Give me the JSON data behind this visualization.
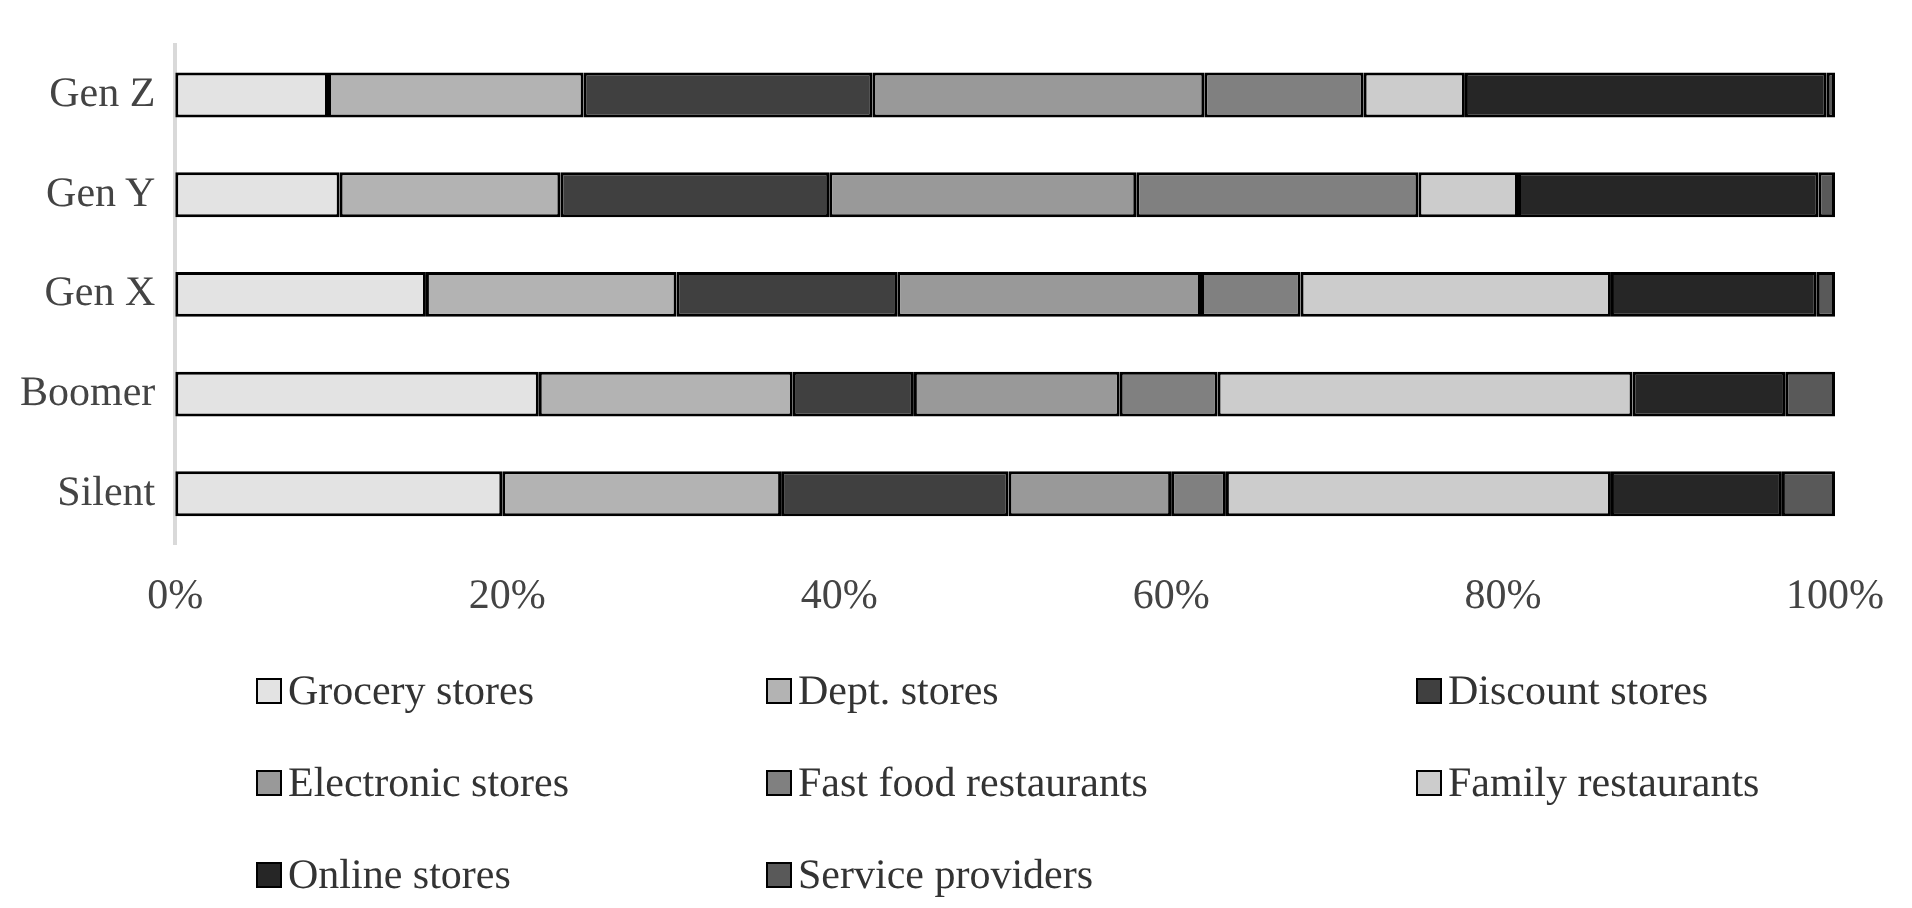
{
  "chart_data": {
    "type": "bar",
    "orientation": "horizontal",
    "stacked": true,
    "categories": [
      "Gen Z",
      "Gen Y",
      "Gen X",
      "Boomer",
      "Silent"
    ],
    "xlim": [
      0,
      100
    ],
    "xticks": [
      {
        "value": 0,
        "label": "0%"
      },
      {
        "value": 20,
        "label": "20%"
      },
      {
        "value": 40,
        "label": "40%"
      },
      {
        "value": 60,
        "label": "60%"
      },
      {
        "value": 80,
        "label": "80%"
      },
      {
        "value": 100,
        "label": "100%"
      }
    ],
    "grid": false,
    "legend": "bottom",
    "series": [
      {
        "name": "Grocery stores",
        "color": "#e3e3e3",
        "values": [
          9.2,
          9.9,
          15.1,
          21.9,
          19.7
        ]
      },
      {
        "name": "Dept. stores",
        "color": "#b3b3b3",
        "values": [
          15.4,
          13.3,
          15.1,
          15.3,
          16.8
        ]
      },
      {
        "name": "Discount stores",
        "color": "#404040",
        "values": [
          17.4,
          16.2,
          13.3,
          7.3,
          13.7
        ]
      },
      {
        "name": "Electronic stores",
        "color": "#999999",
        "values": [
          20.0,
          18.5,
          18.3,
          12.4,
          9.8
        ]
      },
      {
        "name": "Fast food restaurants",
        "color": "#808080",
        "values": [
          9.6,
          17.0,
          6.0,
          5.9,
          3.3
        ]
      },
      {
        "name": "Family restaurants",
        "color": "#cccccc",
        "values": [
          6.1,
          6.0,
          18.7,
          25.0,
          23.2
        ]
      },
      {
        "name": "Online stores",
        "color": "#262626",
        "values": [
          21.8,
          18.1,
          12.4,
          9.2,
          10.3
        ]
      },
      {
        "name": "Service providers",
        "color": "#595959",
        "values": [
          0.5,
          1.0,
          1.1,
          3.0,
          3.2
        ]
      }
    ]
  }
}
